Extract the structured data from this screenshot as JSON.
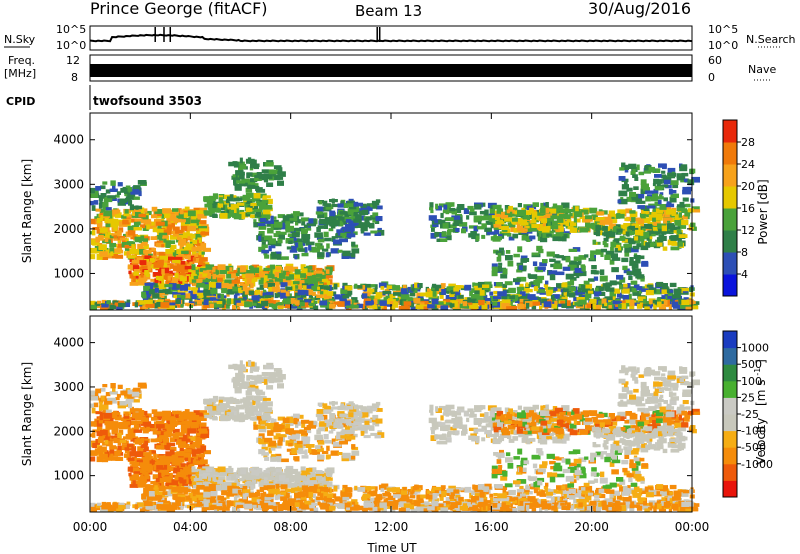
{
  "header": {
    "title": "Prince George (fitACF)",
    "beam": "Beam 13",
    "date": "30/Aug/2016"
  },
  "noise_panel": {
    "left_label": "N.Sky",
    "right_label": "N.Search",
    "left_ticks": [
      "10^5",
      "10^0"
    ],
    "right_ticks": [
      "10^5",
      "10^0"
    ]
  },
  "freq_panel": {
    "left_label_1": "Freq.",
    "left_label_2": "[MHz]",
    "left_ticks": [
      "12",
      "8"
    ],
    "right_label": "Nave",
    "right_ticks": [
      "60",
      "0"
    ]
  },
  "cpid_panel": {
    "label": "CPID",
    "program": "twofsound 3503"
  },
  "colors": {
    "power": [
      "#0a14dc",
      "#2d4fb5",
      "#2f7f48",
      "#4aa23a",
      "#e6c800",
      "#f7a21b",
      "#f07a0a",
      "#e8280a"
    ],
    "velocity": [
      "#e8140a",
      "#ee5a0a",
      "#f58c0a",
      "#f5ad14",
      "#c8c8bc",
      "#cacac4",
      "#48b030",
      "#2e8a40",
      "#2e6aa0",
      "#1a3cc0"
    ]
  },
  "chart_data": [
    {
      "type": "heatmap",
      "name": "Power",
      "ylabel": "Slant Range [km]",
      "yticks": [
        1000,
        2000,
        3000,
        4000
      ],
      "ylim": [
        180,
        4600
      ],
      "xlim": [
        0,
        24
      ],
      "colorbar_label": "Power [dB]",
      "colorbar_ticks": [
        4,
        8,
        12,
        16,
        20,
        24,
        28
      ],
      "colorbar_range": [
        0,
        32
      ]
    },
    {
      "type": "heatmap",
      "name": "Velocity",
      "ylabel": "Slant Range [km]",
      "yticks": [
        1000,
        2000,
        3000,
        4000
      ],
      "ylim": [
        180,
        4600
      ],
      "xlim": [
        0,
        24
      ],
      "xlabel": "Time UT",
      "xticks": [
        "00:00",
        "04:00",
        "08:00",
        "12:00",
        "16:00",
        "20:00",
        "00:00"
      ],
      "colorbar_label_1": "Velocity",
      "colorbar_label_2": "[m s",
      "colorbar_label_3": "-1",
      "colorbar_label_4": "]",
      "colorbar_ticks": [
        "1000",
        "500",
        "100",
        "25",
        "-25",
        "-100",
        "-500",
        "-1000"
      ]
    }
  ]
}
